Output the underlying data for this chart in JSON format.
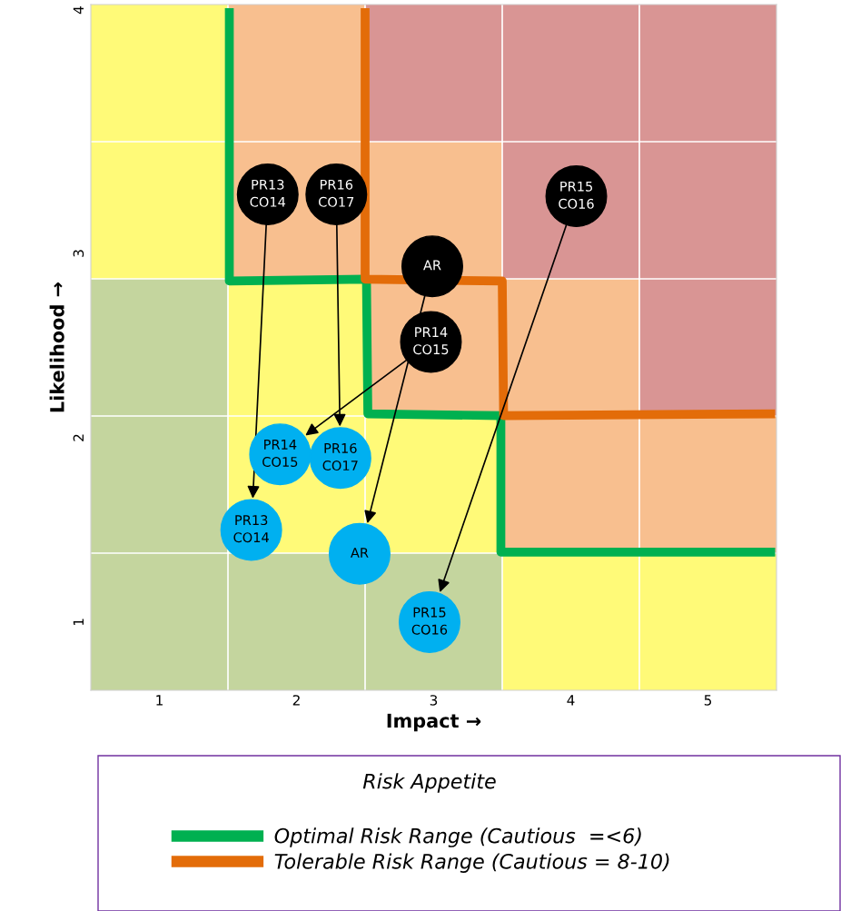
{
  "chart_data": {
    "type": "scatter",
    "xlabel": "Impact →",
    "ylabel": "Likelihood →",
    "legend_title": "Risk Appetite",
    "xlim": [
      0.5,
      5.5
    ],
    "xticks": [
      1,
      2,
      3,
      4,
      5
    ],
    "ylim": [
      0.63,
      4.35
    ],
    "yticks": [
      1,
      2,
      3,
      {
        "value": 4.32,
        "label": "4"
      }
    ],
    "grid": false,
    "legend": "bottom",
    "series": [
      {
        "type": "line",
        "name": "Optimal Risk Range (Cautious  =<6)",
        "color": "#00b050",
        "x": [
          1.51,
          1.51,
          2.51,
          2.52,
          3.49,
          3.49,
          5.49
        ],
        "values": [
          4.33,
          2.85,
          2.86,
          2.13,
          2.12,
          1.38,
          1.38
        ]
      },
      {
        "type": "line",
        "name": "Tolerable Risk Range (Cautious = 8-10)",
        "color": "#e36c09",
        "x": [
          2.5,
          2.5,
          3.5,
          3.51,
          5.49
        ],
        "values": [
          4.33,
          2.86,
          2.85,
          2.12,
          2.13
        ]
      },
      {
        "type": "scatter",
        "marker": "circle",
        "color": "#000000",
        "x": [
          1.79,
          2.29,
          4.04,
          2.99,
          2.98
        ],
        "values": [
          3.32,
          3.32,
          3.31,
          2.93,
          2.52
        ]
      },
      {
        "type": "scatter",
        "marker": "circle",
        "color": "#00b0f0",
        "x": [
          1.67,
          2.32,
          2.97,
          2.46,
          1.88
        ],
        "values": [
          1.5,
          1.89,
          1.0,
          1.37,
          1.91
        ]
      }
    ],
    "annotations": [
      {
        "text": "PR13\nCO14",
        "x": 1.79,
        "y": 3.32
      },
      {
        "text": "PR16\nCO17",
        "x": 2.29,
        "y": 3.32
      },
      {
        "text": "PR15\nCO16",
        "x": 4.04,
        "y": 3.31
      },
      {
        "text": "AR",
        "x": 2.99,
        "y": 2.93
      },
      {
        "text": "PR14\nCO15",
        "x": 2.98,
        "y": 2.52
      },
      {
        "text": "PR13\nCO14",
        "x": 1.67,
        "y": 1.5
      },
      {
        "text": "PR16\nCO17",
        "x": 2.32,
        "y": 1.89
      },
      {
        "text": "PR15\nCO16",
        "x": 2.97,
        "y": 1.0
      },
      {
        "text": "AR",
        "x": 2.46,
        "y": 1.37
      },
      {
        "text": "PR14\nCO15",
        "x": 1.88,
        "y": 1.91
      }
    ]
  }
}
